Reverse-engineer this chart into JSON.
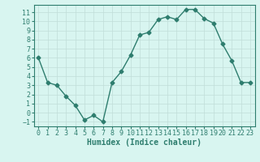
{
  "x": [
    0,
    1,
    2,
    3,
    4,
    5,
    6,
    7,
    8,
    9,
    10,
    11,
    12,
    13,
    14,
    15,
    16,
    17,
    18,
    19,
    20,
    21,
    22,
    23
  ],
  "y": [
    6,
    3.3,
    3.0,
    1.8,
    0.8,
    -0.8,
    -0.3,
    -1.0,
    3.3,
    4.5,
    6.3,
    8.5,
    8.8,
    10.2,
    10.5,
    10.2,
    11.3,
    11.3,
    10.3,
    9.8,
    7.5,
    5.7,
    3.3,
    3.3
  ],
  "line_color": "#2e7d6e",
  "bg_color": "#d8f5f0",
  "grid_color": "#c0ddd8",
  "xlabel": "Humidex (Indice chaleur)",
  "ylim": [
    -1.5,
    11.8
  ],
  "xlim": [
    -0.5,
    23.5
  ],
  "yticks": [
    -1,
    0,
    1,
    2,
    3,
    4,
    5,
    6,
    7,
    8,
    9,
    10,
    11
  ],
  "xticks": [
    0,
    1,
    2,
    3,
    4,
    5,
    6,
    7,
    8,
    9,
    10,
    11,
    12,
    13,
    14,
    15,
    16,
    17,
    18,
    19,
    20,
    21,
    22,
    23
  ],
  "xlabel_fontsize": 7,
  "tick_fontsize": 6,
  "line_width": 1.0,
  "marker_size": 2.5
}
